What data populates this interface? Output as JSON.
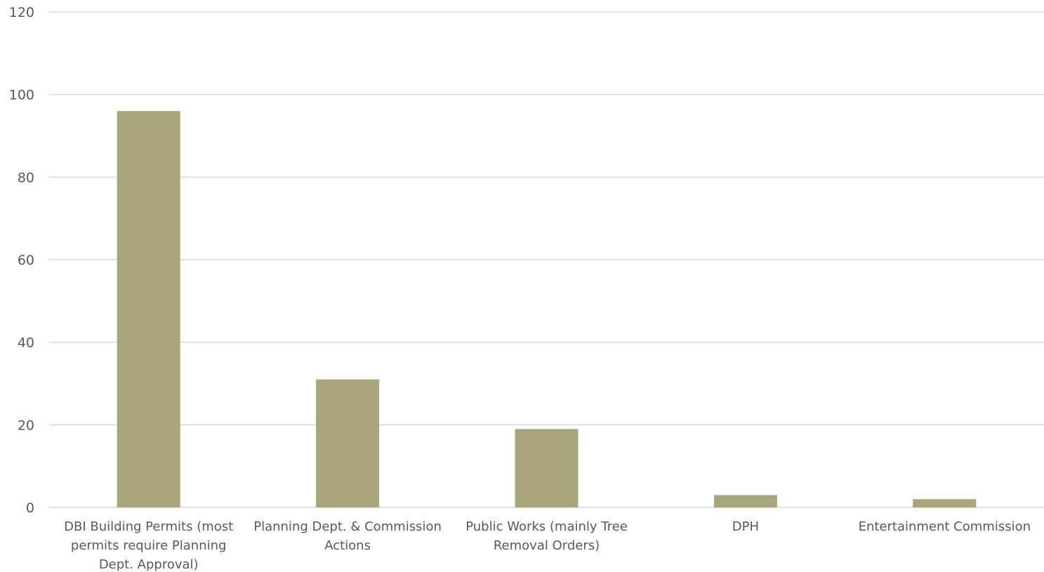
{
  "colors": {
    "bar": "#a9a57c",
    "grid": "#d9d9d9",
    "text": "#595959",
    "background": "#ffffff"
  },
  "chart_data": {
    "type": "bar",
    "categories": [
      "DBI Building Permits (most permits require Planning Dept. Approval)",
      "Planning Dept. & Commission Actions",
      "Public Works (mainly Tree Removal Orders)",
      "DPH",
      "Entertainment Commission"
    ],
    "category_lines": [
      [
        "DBI Building Permits (most",
        "permits require Planning",
        "Dept. Approval)"
      ],
      [
        "Planning Dept. & Commission",
        "Actions"
      ],
      [
        "Public Works (mainly Tree",
        "Removal Orders)"
      ],
      [
        "DPH"
      ],
      [
        "Entertainment Commission"
      ]
    ],
    "values": [
      96,
      31,
      19,
      3,
      2
    ],
    "yticks": [
      0,
      20,
      40,
      60,
      80,
      100,
      120
    ],
    "ylim": [
      0,
      120
    ],
    "grid": true,
    "legend": "none",
    "title": "",
    "xlabel": "",
    "ylabel": ""
  }
}
